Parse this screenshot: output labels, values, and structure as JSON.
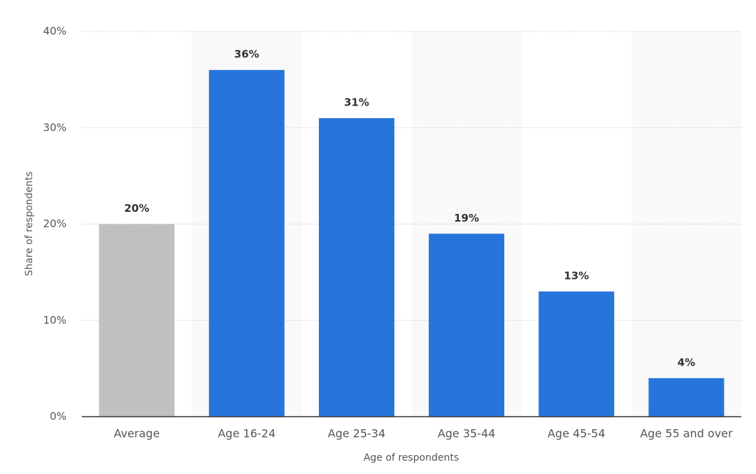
{
  "chart_data": {
    "type": "bar",
    "categories": [
      "Average",
      "Age 16-24",
      "Age 25-34",
      "Age 35-44",
      "Age 45-54",
      "Age 55 and over"
    ],
    "values": [
      20,
      36,
      31,
      19,
      13,
      4
    ],
    "value_labels": [
      "20%",
      "36%",
      "31%",
      "19%",
      "13%",
      "4%"
    ],
    "colors": [
      "#c0c0c0",
      "#2775db",
      "#2775db",
      "#2775db",
      "#2775db",
      "#2775db"
    ],
    "xlabel": "Age of respondents",
    "ylabel": "Share of respondents",
    "ylim": [
      0,
      40
    ],
    "yticks": [
      {
        "value": 0,
        "label": "0%"
      },
      {
        "value": 10,
        "label": "10%"
      },
      {
        "value": 20,
        "label": "20%"
      },
      {
        "value": 30,
        "label": "30%"
      },
      {
        "value": 40,
        "label": "40%"
      }
    ],
    "grid": true
  }
}
